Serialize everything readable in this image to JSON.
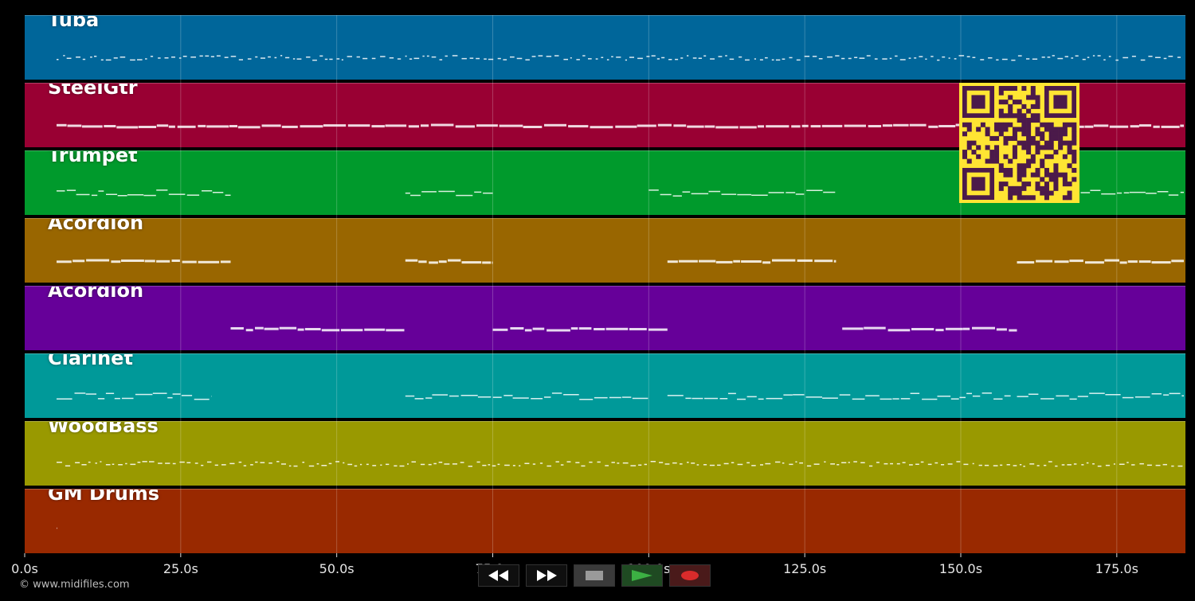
{
  "tracks": [
    {
      "name": "Tuba",
      "color": "#00669a",
      "style": "dots",
      "segments": [
        [
          0,
          186
        ]
      ]
    },
    {
      "name": "SteelGtr",
      "color": "#990033",
      "style": "dense",
      "segments": [
        [
          0,
          186
        ]
      ]
    },
    {
      "name": "Trumpet",
      "color": "#009a2c",
      "style": "wave",
      "segments": [
        [
          5,
          33
        ],
        [
          61,
          75
        ],
        [
          100,
          130
        ],
        [
          167,
          186
        ]
      ]
    },
    {
      "name": "Acordion",
      "color": "#996600",
      "style": "dense",
      "segments": [
        [
          5,
          33
        ],
        [
          61,
          75
        ],
        [
          103,
          130
        ],
        [
          159,
          186
        ]
      ]
    },
    {
      "name": "Acordion",
      "color": "#660099",
      "style": "dense",
      "segments": [
        [
          33,
          61
        ],
        [
          75,
          103
        ],
        [
          131,
          159
        ]
      ]
    },
    {
      "name": "Clarinet",
      "color": "#009999",
      "style": "wave",
      "segments": [
        [
          5,
          30
        ],
        [
          61,
          100
        ],
        [
          103,
          158
        ],
        [
          159,
          186
        ]
      ]
    },
    {
      "name": "WoodBass",
      "color": "#999900",
      "style": "dots",
      "segments": [
        [
          5,
          186
        ]
      ]
    },
    {
      "name": "GM Drums",
      "color": "#992900",
      "style": "dash",
      "segments": [
        [
          1.5,
          5.2
        ]
      ]
    }
  ],
  "axis": {
    "range": [
      0,
      186
    ],
    "ticks": [
      {
        "value": 0,
        "label": "0.0s"
      },
      {
        "value": 25,
        "label": "25.0s"
      },
      {
        "value": 50,
        "label": "50.0s"
      },
      {
        "value": 75,
        "label": "75.0s"
      },
      {
        "value": 100,
        "label": "100.0s"
      },
      {
        "value": 125,
        "label": "125.0s"
      },
      {
        "value": 150,
        "label": "150.0s"
      },
      {
        "value": 175,
        "label": "175.0s"
      }
    ]
  },
  "copyright": "© www.midifiles.com",
  "transport": {
    "rewind": {
      "icon": "rewind-icon"
    },
    "forward": {
      "icon": "fast-forward-icon"
    },
    "stop": {
      "icon": "stop-icon"
    },
    "play": {
      "icon": "play-icon",
      "color": "#3cb043"
    },
    "record": {
      "icon": "record-icon",
      "color": "#d92b2b"
    }
  },
  "qr_code": {
    "icon": "qr-code-icon",
    "color": "#ffe533",
    "fg": "#4b1a4a"
  }
}
